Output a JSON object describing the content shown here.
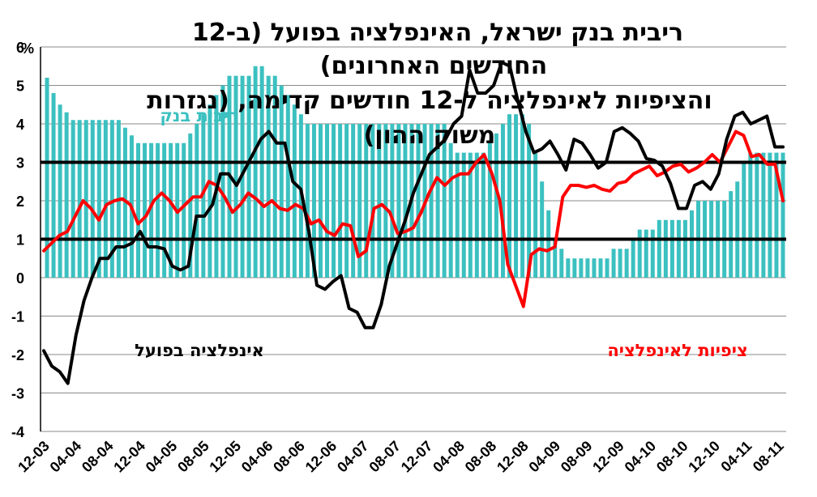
{
  "chart_data": {
    "type": "bar+line",
    "title_lines": [
      "ריבית בנק ישראל, האינפלציה בפועל (ב-12",
      "החודשים האחרונים)",
      "והציפיות לאינפלציה ל-12 חודשים קדימה, (נגזרות",
      "משוק ההון)"
    ],
    "unit_label": "%",
    "ylim": [
      -4,
      6
    ],
    "yticks": [
      "6",
      "5",
      "4",
      "3",
      "2",
      "1",
      "0",
      "-1",
      "-2",
      "-3",
      "-4"
    ],
    "xtick_labels": [
      "12-03",
      "04-04",
      "08-04",
      "12-04",
      "04-05",
      "08-05",
      "12-05",
      "04-06",
      "08-06",
      "12-06",
      "04-07",
      "08-07",
      "12-07",
      "04-08",
      "08-08",
      "12-08",
      "04-09",
      "08-09",
      "12-09",
      "04-10",
      "08-10",
      "12-10",
      "04-11",
      "08-11"
    ],
    "reference_lines": [
      1,
      3
    ],
    "series": [
      {
        "name": "ריבית בנק",
        "kind": "bar",
        "color": "#3cc0c0",
        "values": [
          5.2,
          4.8,
          4.5,
          4.3,
          4.1,
          4.1,
          4.1,
          4.1,
          4.1,
          4.1,
          4.1,
          4.1,
          3.9,
          3.7,
          3.5,
          3.5,
          3.5,
          3.5,
          3.5,
          3.5,
          3.5,
          3.5,
          3.75,
          4.0,
          4.25,
          4.5,
          4.75,
          5.0,
          5.25,
          5.25,
          5.25,
          5.25,
          5.5,
          5.5,
          5.25,
          5.25,
          5.0,
          4.75,
          4.5,
          4.25,
          4.0,
          4.0,
          4.0,
          4.0,
          4.0,
          4.0,
          4.0,
          4.0,
          4.0,
          4.0,
          4.0,
          4.0,
          4.0,
          4.0,
          4.0,
          4.0,
          4.0,
          4.0,
          4.0,
          4.0,
          4.0,
          4.0,
          3.5,
          3.25,
          3.25,
          3.25,
          3.25,
          3.25,
          3.5,
          3.75,
          4.0,
          4.25,
          4.25,
          4.25,
          4.0,
          3.25,
          2.5,
          1.75,
          1.0,
          0.75,
          0.5,
          0.5,
          0.5,
          0.5,
          0.5,
          0.5,
          0.5,
          0.75,
          0.75,
          0.75,
          1.0,
          1.25,
          1.25,
          1.25,
          1.5,
          1.5,
          1.5,
          1.5,
          1.5,
          1.75,
          2.0,
          2.0,
          2.0,
          2.0,
          2.0,
          2.25,
          2.5,
          3.0,
          3.25,
          3.25,
          3.25,
          3.25,
          3.25,
          3.25
        ]
      },
      {
        "name": "אינפלציה בפועל",
        "kind": "line",
        "color": "#000000",
        "values": [
          -1.9,
          -2.3,
          -2.45,
          -2.75,
          -1.5,
          -0.6,
          0.0,
          0.5,
          0.5,
          0.8,
          0.8,
          0.9,
          1.2,
          0.8,
          0.8,
          0.75,
          0.3,
          0.2,
          0.3,
          1.6,
          1.6,
          1.9,
          2.7,
          2.7,
          2.4,
          2.8,
          3.2,
          3.6,
          3.8,
          3.5,
          3.5,
          2.5,
          2.3,
          1.2,
          -0.2,
          -0.3,
          -0.1,
          0.05,
          -0.8,
          -0.9,
          -1.3,
          -1.3,
          -0.7,
          0.3,
          0.9,
          1.5,
          2.2,
          2.7,
          3.2,
          3.4,
          3.6,
          4.0,
          4.2,
          5.4,
          4.8,
          4.8,
          5.0,
          5.6,
          5.5,
          4.6,
          3.8,
          3.25,
          3.35,
          3.55,
          3.2,
          2.8,
          3.6,
          3.5,
          3.2,
          2.85,
          3.0,
          3.8,
          3.9,
          3.75,
          3.55,
          3.1,
          3.05,
          2.9,
          2.45,
          1.8,
          1.8,
          2.4,
          2.5,
          2.3,
          2.7,
          3.6,
          4.2,
          4.3,
          4.0,
          4.1,
          4.2,
          3.4,
          3.4
        ]
      },
      {
        "name": "ציפיות לאינפלציה",
        "kind": "line",
        "color": "#ff0000",
        "values": [
          0.7,
          0.9,
          1.1,
          1.2,
          1.6,
          2.0,
          1.8,
          1.5,
          1.9,
          2.0,
          2.05,
          1.9,
          1.4,
          1.6,
          2.0,
          2.2,
          2.0,
          1.7,
          1.9,
          2.1,
          2.1,
          2.5,
          2.4,
          2.1,
          1.7,
          1.9,
          2.2,
          2.05,
          1.85,
          2.0,
          1.8,
          1.75,
          1.9,
          1.8,
          1.4,
          1.5,
          1.2,
          1.1,
          1.4,
          1.35,
          0.55,
          0.7,
          1.8,
          1.9,
          1.7,
          1.15,
          1.2,
          1.3,
          1.7,
          2.2,
          2.6,
          2.4,
          2.6,
          2.7,
          2.7,
          3.0,
          3.2,
          2.7,
          2.0,
          0.35,
          -0.2,
          -0.75,
          0.6,
          0.75,
          0.7,
          0.8,
          2.1,
          2.4,
          2.4,
          2.35,
          2.4,
          2.3,
          2.25,
          2.45,
          2.5,
          2.7,
          2.8,
          2.9,
          2.65,
          2.75,
          2.9,
          2.95,
          2.75,
          2.85,
          3.0,
          3.2,
          3.0,
          3.4,
          3.8,
          3.7,
          3.15,
          3.2,
          2.95,
          2.95,
          2.0
        ]
      }
    ],
    "annotations": [
      {
        "text": "אינפלציה בפועל",
        "color": "#000000"
      },
      {
        "text": "ציפיות לאינפלציה",
        "color": "#ff0000"
      }
    ]
  }
}
